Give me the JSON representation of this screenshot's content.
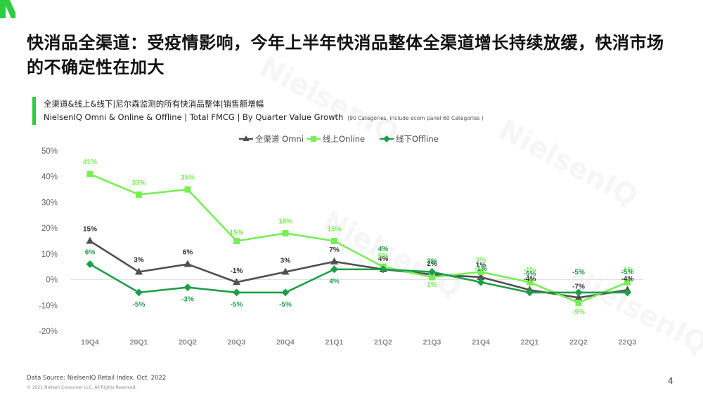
{
  "header": {
    "title": "快消品全渠道：受疫情影响，今年上半年快消品整体全渠道增长持续放缓，快消市场的不确定性在加大",
    "subtitle_cn": "全渠道&线上&线下|尼尔森监测的所有快消品整体|销售额增幅",
    "subtitle_en": "NielsenIQ Omni & Online & Offline | Total FMCG | By Quarter Value Growth",
    "subtitle_note": "(90 Categories, include ecom panel 60 Categories )"
  },
  "footer": {
    "source": "Data Source: NielsenIQ Retail Index, Oct. 2022",
    "copyright": "© 2021 Nielsen Consumer LLC. All Rights Reserved.",
    "page_number": "4"
  },
  "watermark_text": "NielsenIQ",
  "colors": {
    "accent": "#2ecc40",
    "omni": "#505050",
    "online": "#77ee55",
    "offline": "#1f9e4a"
  },
  "chart_data": {
    "type": "line",
    "categories": [
      "19Q4",
      "20Q1",
      "20Q2",
      "20Q3",
      "20Q4",
      "21Q1",
      "21Q2",
      "21Q3",
      "21Q4",
      "22Q1",
      "22Q2",
      "22Q3"
    ],
    "ylim": [
      -20,
      50
    ],
    "yticks": [
      -20,
      -10,
      0,
      10,
      20,
      30,
      40,
      50
    ],
    "ytick_labels": [
      "-20%",
      "-10%",
      "0%",
      "10%",
      "20%",
      "30%",
      "40%",
      "50%"
    ],
    "legend_position": "top",
    "series": [
      {
        "name": "全渠道 Omni",
        "color": "#505050",
        "marker": "triangle",
        "values": [
          15,
          3,
          6,
          -1,
          3,
          7,
          4,
          2,
          1,
          -4,
          -7,
          -4
        ],
        "labels": [
          "15%",
          "3%",
          "6%",
          "-1%",
          "3%",
          "7%",
          "4%",
          "2%",
          "1%",
          "-4%",
          "-7%",
          "-4%"
        ]
      },
      {
        "name": "线上Online",
        "color": "#77ee55",
        "marker": "square",
        "values": [
          41,
          33,
          35,
          15,
          18,
          15,
          5,
          1,
          3,
          -1,
          -9,
          -1
        ],
        "labels": [
          "41%",
          "33%",
          "35%",
          "15%",
          "18%",
          "15%",
          "5%",
          "1%",
          "3%",
          "-1%",
          "-9%",
          "-1%"
        ]
      },
      {
        "name": "线下Offline",
        "color": "#1f9e4a",
        "marker": "diamond",
        "values": [
          6,
          -5,
          -3,
          -5,
          -5,
          4,
          4,
          3,
          -1,
          -5,
          -5,
          -5
        ],
        "labels": [
          "6%",
          "-5%",
          "-3%",
          "-5%",
          "-5%",
          "4%",
          "4%",
          "3%",
          "-1%",
          "-5%",
          "-5%",
          "-5%"
        ]
      }
    ]
  }
}
